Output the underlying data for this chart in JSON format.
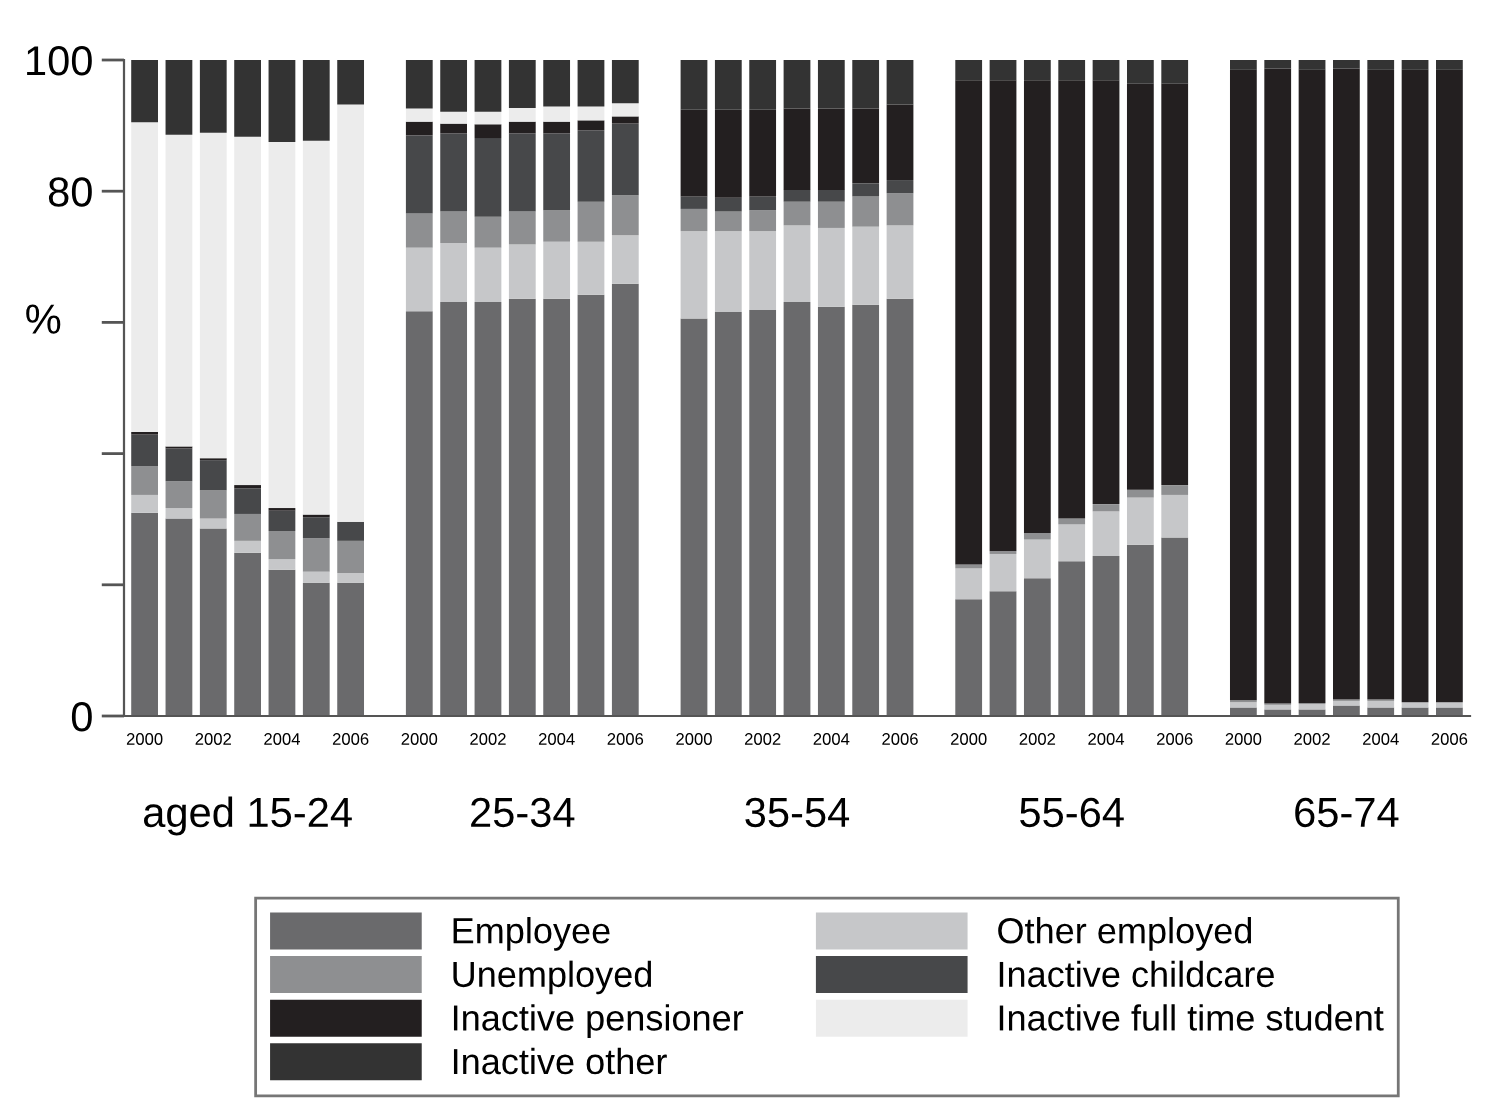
{
  "chart_data": {
    "type": "bar",
    "stacked": true,
    "ylabel": "%",
    "ylim": [
      0,
      100
    ],
    "yticks": [
      0,
      {
        "value": 20,
        "label": null
      },
      {
        "value": 40,
        "label": null
      },
      {
        "value": 60,
        "label": null
      },
      80,
      100
    ],
    "categories": [
      "2000",
      null,
      "2002",
      null,
      "2004",
      null,
      "2006",
      null,
      "2000",
      null,
      "2002",
      null,
      "2004",
      null,
      "2006",
      null,
      "2000",
      null,
      "2002",
      null,
      "2004",
      null,
      "2006",
      null,
      "2000",
      null,
      "2002",
      null,
      "2004",
      null,
      "2006",
      null,
      "2000",
      null,
      "2002",
      null,
      "2004",
      null,
      "2006"
    ],
    "annotations": [
      "aged 15-24",
      "25-34",
      "35-54",
      "55-64",
      "65-74"
    ],
    "legend": "bottom",
    "grid": false,
    "series": [
      {
        "name": "Employee",
        "color": "#6a6a6c",
        "values": [
          31.0,
          30.1,
          28.6,
          24.9,
          22.3,
          20.3,
          20.3,
          null,
          61.7,
          63.1,
          63.1,
          63.6,
          63.6,
          64.2,
          65.9,
          null,
          60.6,
          61.6,
          61.9,
          63.1,
          62.4,
          62.7,
          63.6,
          null,
          17.8,
          19.0,
          21.0,
          23.6,
          24.4,
          26.1,
          27.2,
          null,
          1.3,
          1.0,
          1.0,
          1.6,
          1.3,
          1.3,
          1.3
        ]
      },
      {
        "name": "Other employed",
        "color": "#c6c7c9",
        "values": [
          2.7,
          1.6,
          1.5,
          1.8,
          1.6,
          1.7,
          1.5,
          null,
          9.7,
          9.0,
          8.3,
          8.3,
          8.7,
          8.1,
          7.4,
          null,
          13.3,
          12.3,
          12.0,
          11.7,
          12.0,
          11.9,
          11.2,
          null,
          4.7,
          5.7,
          5.9,
          5.6,
          6.8,
          7.2,
          6.5,
          null,
          0.8,
          0.7,
          0.8,
          0.7,
          1.0,
          0.8,
          0.8
        ]
      },
      {
        "name": "Unemployed",
        "color": "#8e8f91",
        "values": [
          4.4,
          4.1,
          4.3,
          4.1,
          4.3,
          5.1,
          4.9,
          null,
          5.2,
          4.8,
          4.7,
          5.0,
          4.8,
          6.1,
          6.1,
          null,
          3.4,
          3.0,
          3.2,
          3.6,
          4.0,
          4.6,
          4.9,
          null,
          0.6,
          0.4,
          1.0,
          0.9,
          1.1,
          1.2,
          1.5,
          null,
          0.3,
          0.2,
          0.2,
          0.2,
          0.2,
          0,
          0
        ]
      },
      {
        "name": "Inactive childcare",
        "color": "#47484a",
        "values": [
          4.8,
          5.0,
          4.6,
          3.9,
          3.1,
          3.2,
          2.9,
          null,
          11.9,
          11.9,
          12.0,
          11.9,
          11.7,
          10.9,
          10.9,
          null,
          1.9,
          2.1,
          2.1,
          1.8,
          1.8,
          2.0,
          2.0,
          null,
          0,
          0,
          0,
          0,
          0,
          0,
          0,
          null,
          0,
          0,
          0,
          0,
          0,
          0,
          0
        ]
      },
      {
        "name": "Inactive pensioner",
        "color": "#231f20",
        "values": [
          0.4,
          0.3,
          0.3,
          0.5,
          0.4,
          0.4,
          0,
          null,
          2.1,
          1.5,
          2.1,
          1.8,
          1.8,
          1.5,
          1.1,
          null,
          13.2,
          13.4,
          13.2,
          12.4,
          12.4,
          11.4,
          11.5,
          null,
          73.8,
          71.8,
          69.0,
          66.8,
          64.6,
          61.9,
          61.2,
          null,
          96.1,
          96.8,
          96.5,
          96.2,
          96.0,
          96.4,
          96.4
        ]
      },
      {
        "name": "Inactive full time student",
        "color": "#ececec",
        "values": [
          47.2,
          47.5,
          49.6,
          53.1,
          55.8,
          57.0,
          63.6,
          null,
          2.0,
          1.8,
          1.9,
          2.1,
          2.3,
          2.1,
          2.0,
          null,
          0,
          0,
          0,
          0,
          0,
          0,
          0,
          null,
          0,
          0,
          0,
          0,
          0,
          0,
          0,
          null,
          0,
          0,
          0,
          0,
          0,
          0,
          0
        ]
      },
      {
        "name": "Inactive other",
        "color": "#333333",
        "values": [
          9.5,
          11.4,
          11.1,
          11.7,
          12.5,
          12.3,
          6.8,
          null,
          7.4,
          7.9,
          7.9,
          7.3,
          7.1,
          7.1,
          6.6,
          null,
          7.6,
          7.6,
          7.6,
          7.4,
          7.4,
          7.4,
          6.8,
          null,
          3.1,
          3.1,
          3.1,
          3.1,
          3.1,
          3.6,
          3.6,
          null,
          1.5,
          1.5,
          1.5,
          1.5,
          1.5,
          1.5,
          1.5
        ]
      }
    ]
  }
}
